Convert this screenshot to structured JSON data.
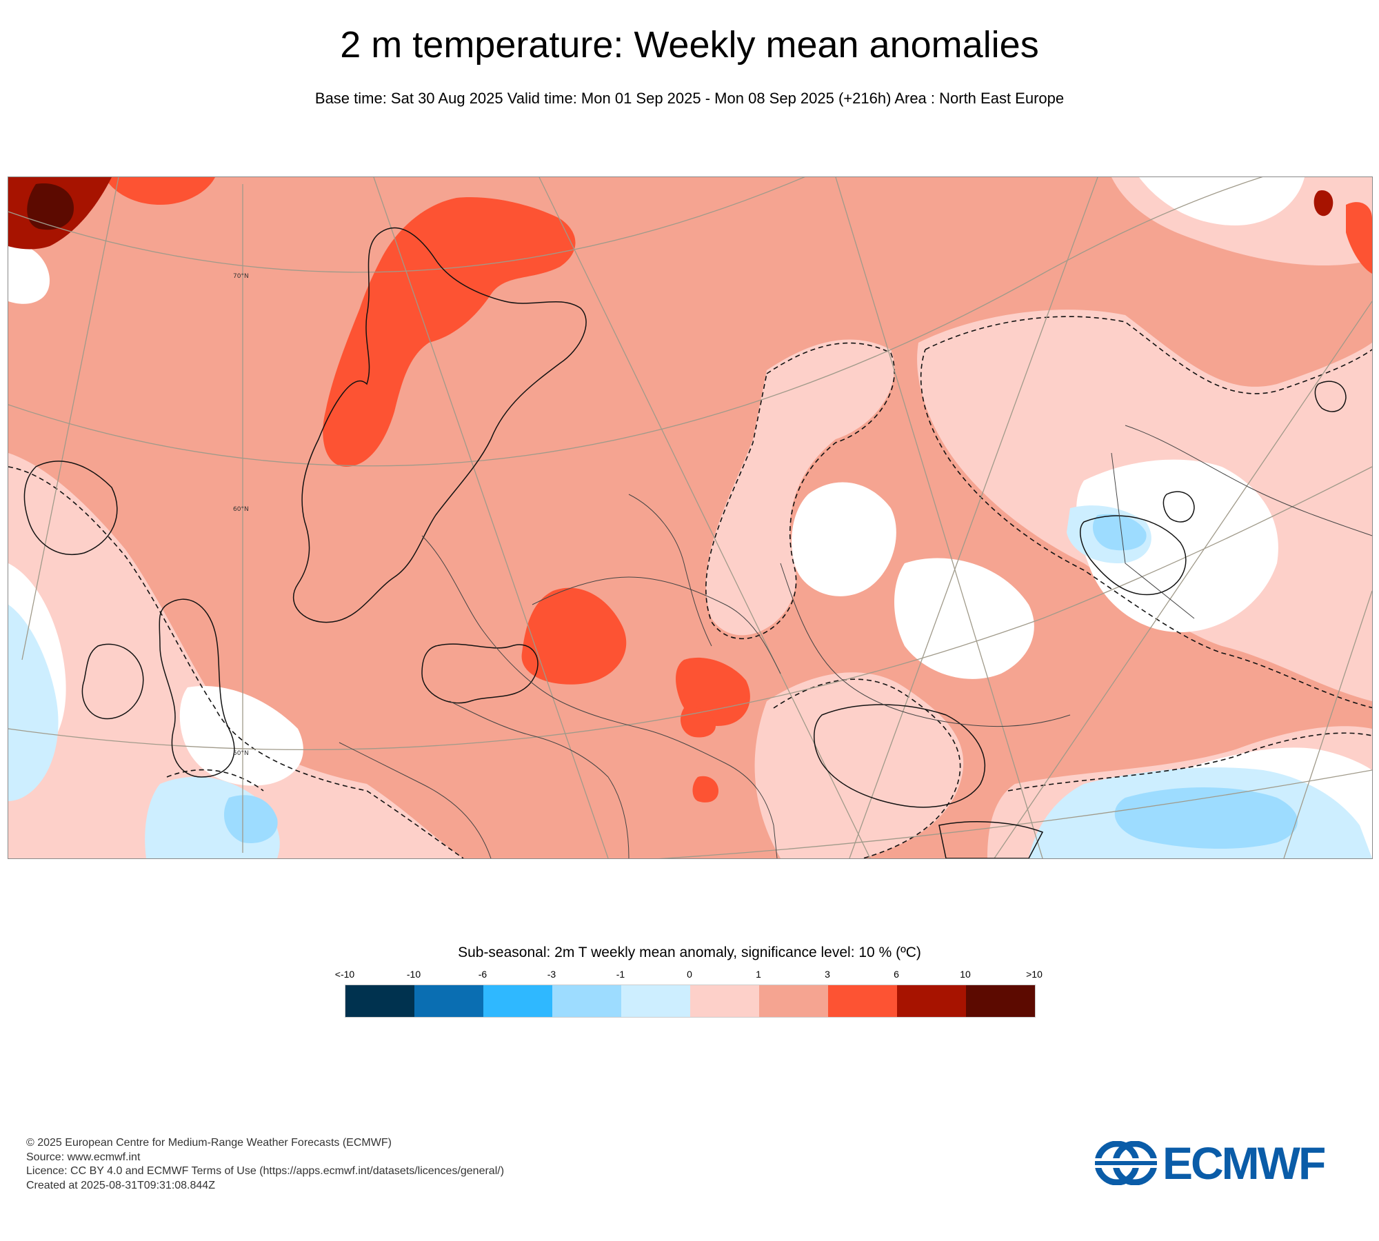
{
  "header": {
    "title": "2 m temperature: Weekly mean anomalies",
    "subtitle": "Base time: Sat 30 Aug 2025 Valid time: Mon 01 Sep 2025 - Mon 08 Sep 2025 (+216h) Area : North East Europe"
  },
  "map": {
    "grid_labels": {
      "lat70": "70°N",
      "lat60": "60°N",
      "lat50": "50°N"
    }
  },
  "legend": {
    "title": "Sub-seasonal: 2m T weekly mean anomaly, significance level: 10 % (ºC)",
    "ticks": [
      "<-10",
      "-10",
      "-6",
      "-3",
      "-1",
      "0",
      "1",
      "3",
      "6",
      "10",
      ">10"
    ],
    "colors": [
      "#00324f",
      "#0a6eb2",
      "#2fb8ff",
      "#9ddcff",
      "#cdeeff",
      "#fdd0c9",
      "#f5a491",
      "#fd5333",
      "#a71300",
      "#5c0a00"
    ]
  },
  "footer": {
    "line1": "© 2025 European Centre for Medium-Range Weather Forecasts (ECMWF)",
    "line2": "Source: www.ecmwf.int",
    "line3": "Licence: CC BY 4.0 and ECMWF Terms of Use (https://apps.ecmwf.int/datasets/licences/general/)",
    "line4": "Created at 2025-08-31T09:31:08.844Z"
  },
  "logo": {
    "text": "ECMWF",
    "color": "#0a5ca8"
  }
}
